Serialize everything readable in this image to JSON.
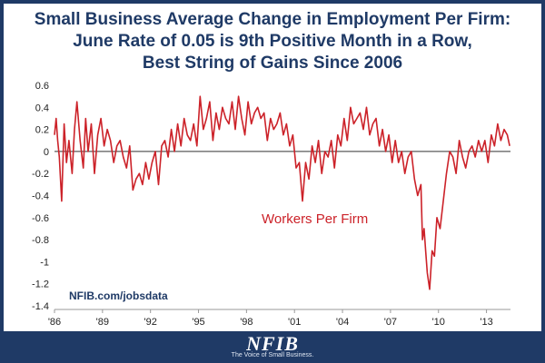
{
  "header": {
    "title_lines": [
      "Small Business Average Change in Employment Per Firm:",
      "June Rate of 0.05 is 9th Positive Month in a Row,",
      "Best String of Gains Since 2006"
    ]
  },
  "source_label": "NFIB.com/jobsdata",
  "footer": {
    "logo_text": "NFIB",
    "tagline": "The Voice of Small Business."
  },
  "colors": {
    "line": "#cc2229",
    "title": "#1f3a66",
    "frame": "#1f3a66",
    "zero_line": "#333333"
  },
  "chart_data": {
    "type": "line",
    "title": "Small Business Average Change in Employment Per Firm: June Rate of 0.05 is 9th Positive Month in a Row, Best String of Gains Since 2006",
    "xlabel": "",
    "ylabel": "",
    "ylim": [
      -1.4,
      0.6
    ],
    "yticks": [
      0.6,
      0.4,
      0.2,
      0,
      -0.2,
      -0.4,
      -0.6,
      -0.8,
      -1,
      -1.2,
      -1.4
    ],
    "ytick_labels": [
      "0.6",
      "0.4",
      "0.2",
      "0",
      "-0.2",
      "-0.4",
      "-0.6",
      "-0.8",
      "-1",
      "-1.2",
      "-1.4"
    ],
    "xlim": [
      1986.0,
      2014.5
    ],
    "xticks": [
      1986,
      1989,
      1992,
      1995,
      1998,
      2001,
      2004,
      2007,
      2010,
      2013
    ],
    "xtick_labels": [
      "'86",
      "'89",
      "'92",
      "'95",
      "'98",
      "'01",
      "'04",
      "'07",
      "'10",
      "'13"
    ],
    "grid": false,
    "series": [
      {
        "name": "Workers Per Firm",
        "x": [
          1986.0,
          1986.1,
          1986.2,
          1986.3,
          1986.45,
          1986.6,
          1986.75,
          1986.9,
          1987.1,
          1987.25,
          1987.4,
          1987.6,
          1987.8,
          1987.95,
          1988.1,
          1988.3,
          1988.5,
          1988.7,
          1988.9,
          1989.1,
          1989.3,
          1989.5,
          1989.7,
          1989.9,
          1990.1,
          1990.3,
          1990.5,
          1990.7,
          1990.9,
          1991.1,
          1991.3,
          1991.5,
          1991.7,
          1991.9,
          1992.1,
          1992.3,
          1992.5,
          1992.7,
          1992.9,
          1993.1,
          1993.3,
          1993.5,
          1993.7,
          1993.9,
          1994.1,
          1994.3,
          1994.5,
          1994.7,
          1994.9,
          1995.1,
          1995.3,
          1995.5,
          1995.7,
          1995.9,
          1996.1,
          1996.3,
          1996.5,
          1996.7,
          1996.9,
          1997.1,
          1997.3,
          1997.5,
          1997.7,
          1997.9,
          1998.1,
          1998.3,
          1998.5,
          1998.7,
          1998.9,
          1999.1,
          1999.3,
          1999.5,
          1999.7,
          1999.9,
          2000.1,
          2000.3,
          2000.5,
          2000.7,
          2000.9,
          2001.1,
          2001.3,
          2001.5,
          2001.7,
          2001.9,
          2002.1,
          2002.3,
          2002.5,
          2002.7,
          2002.9,
          2003.1,
          2003.3,
          2003.5,
          2003.7,
          2003.9,
          2004.1,
          2004.3,
          2004.5,
          2004.7,
          2004.9,
          2005.1,
          2005.3,
          2005.5,
          2005.7,
          2005.9,
          2006.1,
          2006.3,
          2006.5,
          2006.7,
          2006.9,
          2007.1,
          2007.3,
          2007.5,
          2007.7,
          2007.9,
          2008.1,
          2008.3,
          2008.5,
          2008.7,
          2008.9,
          2009.0,
          2009.1,
          2009.2,
          2009.3,
          2009.45,
          2009.6,
          2009.75,
          2009.9,
          2010.1,
          2010.3,
          2010.5,
          2010.7,
          2010.9,
          2011.1,
          2011.3,
          2011.5,
          2011.7,
          2011.9,
          2012.1,
          2012.3,
          2012.5,
          2012.7,
          2012.9,
          2013.1,
          2013.3,
          2013.5,
          2013.7,
          2013.9,
          2014.1,
          2014.3,
          2014.45
        ],
        "y": [
          0.15,
          0.3,
          0.1,
          -0.05,
          -0.45,
          0.25,
          -0.1,
          0.1,
          -0.2,
          0.2,
          0.45,
          0.1,
          -0.15,
          0.3,
          0.0,
          0.25,
          -0.2,
          0.15,
          0.3,
          0.05,
          0.2,
          0.1,
          -0.1,
          0.05,
          0.1,
          -0.05,
          -0.15,
          0.05,
          -0.35,
          -0.25,
          -0.2,
          -0.3,
          -0.1,
          -0.25,
          -0.1,
          0.0,
          -0.3,
          0.05,
          0.1,
          -0.05,
          0.2,
          0.0,
          0.25,
          0.05,
          0.3,
          0.15,
          0.1,
          0.25,
          0.05,
          0.5,
          0.2,
          0.3,
          0.45,
          0.1,
          0.35,
          0.2,
          0.4,
          0.3,
          0.25,
          0.45,
          0.2,
          0.5,
          0.3,
          0.15,
          0.45,
          0.25,
          0.35,
          0.4,
          0.3,
          0.35,
          0.1,
          0.3,
          0.2,
          0.25,
          0.35,
          0.15,
          0.25,
          0.05,
          0.15,
          -0.15,
          -0.1,
          -0.45,
          -0.1,
          -0.25,
          0.05,
          -0.1,
          0.1,
          -0.2,
          0.0,
          -0.05,
          0.1,
          -0.15,
          0.15,
          0.05,
          0.3,
          0.1,
          0.4,
          0.25,
          0.3,
          0.35,
          0.2,
          0.4,
          0.15,
          0.25,
          0.3,
          0.05,
          0.2,
          0.0,
          0.15,
          -0.1,
          0.1,
          -0.1,
          0.0,
          -0.2,
          -0.05,
          0.0,
          -0.25,
          -0.4,
          -0.3,
          -0.8,
          -0.7,
          -0.9,
          -1.1,
          -1.25,
          -0.9,
          -0.95,
          -0.6,
          -0.7,
          -0.45,
          -0.2,
          0.0,
          -0.05,
          -0.2,
          0.1,
          -0.05,
          -0.15,
          0.0,
          0.05,
          -0.05,
          0.1,
          0.0,
          0.1,
          -0.1,
          0.15,
          0.05,
          0.25,
          0.1,
          0.2,
          0.15,
          0.05
        ]
      }
    ]
  }
}
